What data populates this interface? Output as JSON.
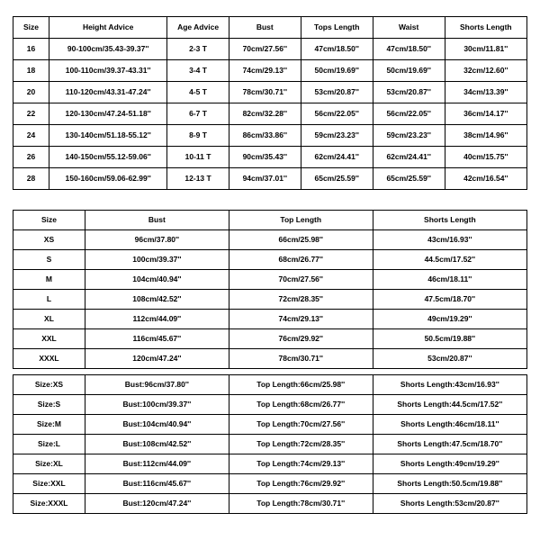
{
  "table1": {
    "headers": [
      "Size",
      "Height Advice",
      "Age Advice",
      "Bust",
      "Tops Length",
      "Waist",
      "Shorts Length"
    ],
    "rows": [
      [
        "16",
        "90-100cm/35.43-39.37''",
        "2-3 T",
        "70cm/27.56''",
        "47cm/18.50''",
        "47cm/18.50''",
        "30cm/11.81''"
      ],
      [
        "18",
        "100-110cm/39.37-43.31''",
        "3-4 T",
        "74cm/29.13''",
        "50cm/19.69''",
        "50cm/19.69''",
        "32cm/12.60''"
      ],
      [
        "20",
        "110-120cm/43.31-47.24''",
        "4-5 T",
        "78cm/30.71''",
        "53cm/20.87''",
        "53cm/20.87''",
        "34cm/13.39''"
      ],
      [
        "22",
        "120-130cm/47.24-51.18''",
        "6-7 T",
        "82cm/32.28''",
        "56cm/22.05''",
        "56cm/22.05''",
        "36cm/14.17''"
      ],
      [
        "24",
        "130-140cm/51.18-55.12''",
        "8-9 T",
        "86cm/33.86''",
        "59cm/23.23''",
        "59cm/23.23''",
        "38cm/14.96''"
      ],
      [
        "26",
        "140-150cm/55.12-59.06''",
        "10-11 T",
        "90cm/35.43''",
        "62cm/24.41''",
        "62cm/24.41''",
        "40cm/15.75''"
      ],
      [
        "28",
        "150-160cm/59.06-62.99''",
        "12-13 T",
        "94cm/37.01''",
        "65cm/25.59''",
        "65cm/25.59''",
        "42cm/16.54''"
      ]
    ]
  },
  "table2": {
    "headers": [
      "Size",
      "Bust",
      "Top Length",
      "Shorts Length"
    ],
    "rows": [
      [
        "XS",
        "96cm/37.80''",
        "66cm/25.98''",
        "43cm/16.93''"
      ],
      [
        "S",
        "100cm/39.37''",
        "68cm/26.77''",
        "44.5cm/17.52''"
      ],
      [
        "M",
        "104cm/40.94''",
        "70cm/27.56''",
        "46cm/18.11''"
      ],
      [
        "L",
        "108cm/42.52''",
        "72cm/28.35''",
        "47.5cm/18.70''"
      ],
      [
        "XL",
        "112cm/44.09''",
        "74cm/29.13''",
        "49cm/19.29''"
      ],
      [
        "XXL",
        "116cm/45.67''",
        "76cm/29.92''",
        "50.5cm/19.88''"
      ],
      [
        "XXXL",
        "120cm/47.24''",
        "78cm/30.71''",
        "53cm/20.87''"
      ]
    ]
  },
  "table3": {
    "rows": [
      [
        "Size:XS",
        "Bust:96cm/37.80''",
        "Top Length:66cm/25.98''",
        "Shorts Length:43cm/16.93''"
      ],
      [
        "Size:S",
        "Bust:100cm/39.37''",
        "Top Length:68cm/26.77''",
        "Shorts Length:44.5cm/17.52''"
      ],
      [
        "Size:M",
        "Bust:104cm/40.94''",
        "Top Length:70cm/27.56''",
        "Shorts Length:46cm/18.11''"
      ],
      [
        "Size:L",
        "Bust:108cm/42.52''",
        "Top Length:72cm/28.35''",
        "Shorts Length:47.5cm/18.70''"
      ],
      [
        "Size:XL",
        "Bust:112cm/44.09''",
        "Top Length:74cm/29.13''",
        "Shorts Length:49cm/19.29''"
      ],
      [
        "Size:XXL",
        "Bust:116cm/45.67''",
        "Top Length:76cm/29.92''",
        "Shorts Length:50.5cm/19.88''"
      ],
      [
        "Size:XXXL",
        "Bust:120cm/47.24''",
        "Top Length:78cm/30.71''",
        "Shorts Length:53cm/20.87''"
      ]
    ]
  }
}
